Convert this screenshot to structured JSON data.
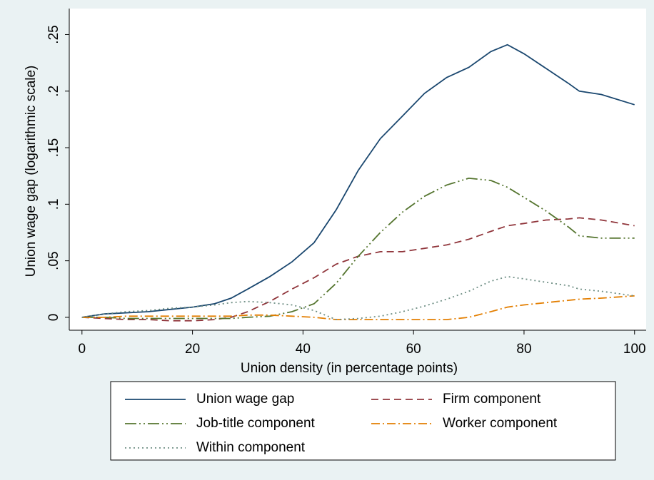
{
  "chart_data": {
    "type": "line",
    "x_label": "Union density (in percentage points)",
    "y_label": "Union wage gap (logarithmic scale)",
    "x": [
      0,
      4,
      8,
      12,
      16,
      20,
      24,
      27,
      30,
      34,
      38,
      42,
      46,
      50,
      54,
      58,
      62,
      66,
      70,
      74,
      77,
      80,
      84,
      88,
      90,
      94,
      100
    ],
    "series": [
      {
        "name": "Union wage gap",
        "color": "#1a476f",
        "dash": "solid",
        "values": [
          0,
          0.003,
          0.004,
          0.005,
          0.007,
          0.009,
          0.012,
          0.017,
          0.025,
          0.036,
          0.049,
          0.066,
          0.095,
          0.13,
          0.158,
          0.178,
          0.198,
          0.212,
          0.221,
          0.235,
          0.241,
          0.233,
          0.22,
          0.207,
          0.2,
          0.197,
          0.188
        ]
      },
      {
        "name": "Firm component",
        "color": "#90353b",
        "dash": "dash",
        "values": [
          0,
          -0.001,
          -0.002,
          -0.002,
          -0.003,
          -0.003,
          -0.002,
          0,
          0.005,
          0.014,
          0.025,
          0.035,
          0.047,
          0.054,
          0.058,
          0.058,
          0.061,
          0.064,
          0.069,
          0.076,
          0.081,
          0.083,
          0.086,
          0.087,
          0.088,
          0.086,
          0.081
        ]
      },
      {
        "name": "Job-title component",
        "color": "#55752f",
        "dash": "longdash-dot-dot",
        "values": [
          0,
          0,
          -0.001,
          -0.001,
          -0.001,
          -0.001,
          -0.001,
          -0.001,
          0,
          0.001,
          0.005,
          0.012,
          0.03,
          0.054,
          0.075,
          0.093,
          0.107,
          0.117,
          0.123,
          0.121,
          0.115,
          0.106,
          0.094,
          0.08,
          0.072,
          0.07,
          0.07
        ]
      },
      {
        "name": "Worker component",
        "color": "#e37e00",
        "dash": "dash-dot",
        "values": [
          0,
          0,
          0.001,
          0.001,
          0.001,
          0.001,
          0.001,
          0.001,
          0.002,
          0.002,
          0.001,
          0,
          -0.002,
          -0.002,
          -0.002,
          -0.002,
          -0.002,
          -0.002,
          0,
          0.005,
          0.009,
          0.011,
          0.013,
          0.015,
          0.016,
          0.017,
          0.019
        ]
      },
      {
        "name": "Within component",
        "color": "#6e8e84",
        "dash": "dot",
        "values": [
          0,
          0.003,
          0.005,
          0.006,
          0.008,
          0.009,
          0.011,
          0.013,
          0.014,
          0.013,
          0.011,
          0.006,
          -0.002,
          -0.001,
          0.001,
          0.005,
          0.01,
          0.016,
          0.023,
          0.032,
          0.036,
          0.034,
          0.031,
          0.028,
          0.025,
          0.023,
          0.019
        ]
      }
    ],
    "xlim": [
      -2.3,
      102.1
    ],
    "xticks": [
      0,
      20,
      40,
      60,
      80,
      100
    ],
    "ylim": [
      -0.0114,
      0.273
    ],
    "yticks": [
      0,
      {
        "value": 0.05,
        "label": ".05"
      },
      {
        "value": 0.1,
        "label": ".1"
      },
      {
        "value": 0.15,
        "label": ".15"
      },
      {
        "value": 0.2,
        "label": ".2"
      },
      {
        "value": 0.25,
        "label": ".25"
      }
    ],
    "grid": false,
    "legend": "bottom"
  }
}
